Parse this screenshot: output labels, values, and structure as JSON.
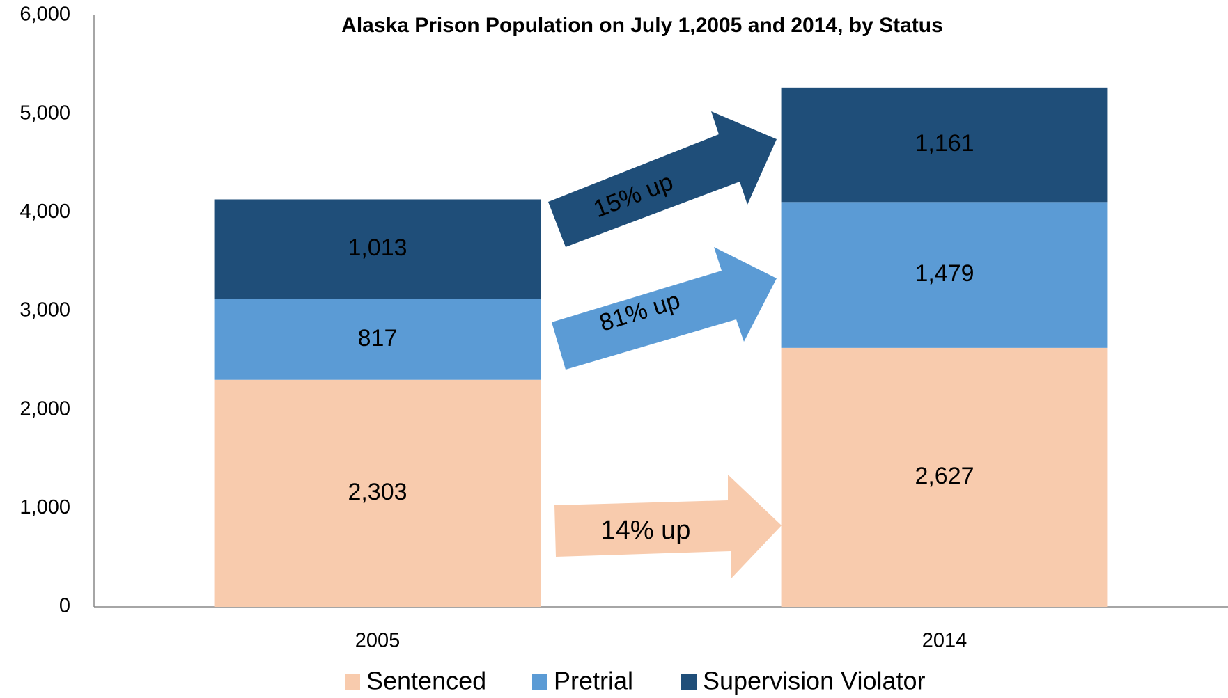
{
  "chart_data": {
    "type": "stacked_bar",
    "title": "Alaska Prison Population on July 1,2005 and  2014, by Status",
    "categories": [
      "2005",
      "2014"
    ],
    "series": [
      {
        "name": "Sentenced",
        "color": "#f8cbad",
        "values": [
          2303,
          2627
        ],
        "value_labels": [
          "2,303",
          "2,627"
        ]
      },
      {
        "name": "Pretrial",
        "color": "#5b9bd5",
        "values": [
          817,
          1479
        ],
        "value_labels": [
          "817",
          "1,479"
        ]
      },
      {
        "name": "Supervision Violator",
        "color": "#1f4e79",
        "values": [
          1013,
          1161
        ],
        "value_labels": [
          "1,013",
          "1,161"
        ]
      }
    ],
    "annotations": [
      "15% up",
      "81% up",
      "14% up"
    ],
    "ylim": [
      0,
      6000
    ],
    "yticks": [
      0,
      {
        "value": 1000,
        "label": "1,000"
      },
      {
        "value": 2000,
        "label": "2,000"
      },
      {
        "value": 3000,
        "label": "3,000"
      },
      {
        "value": 4000,
        "label": "4,000"
      },
      {
        "value": 5000,
        "label": "5,000"
      },
      {
        "value": 6000,
        "label": "6,000"
      }
    ],
    "grid": false,
    "legend": "bottom"
  }
}
